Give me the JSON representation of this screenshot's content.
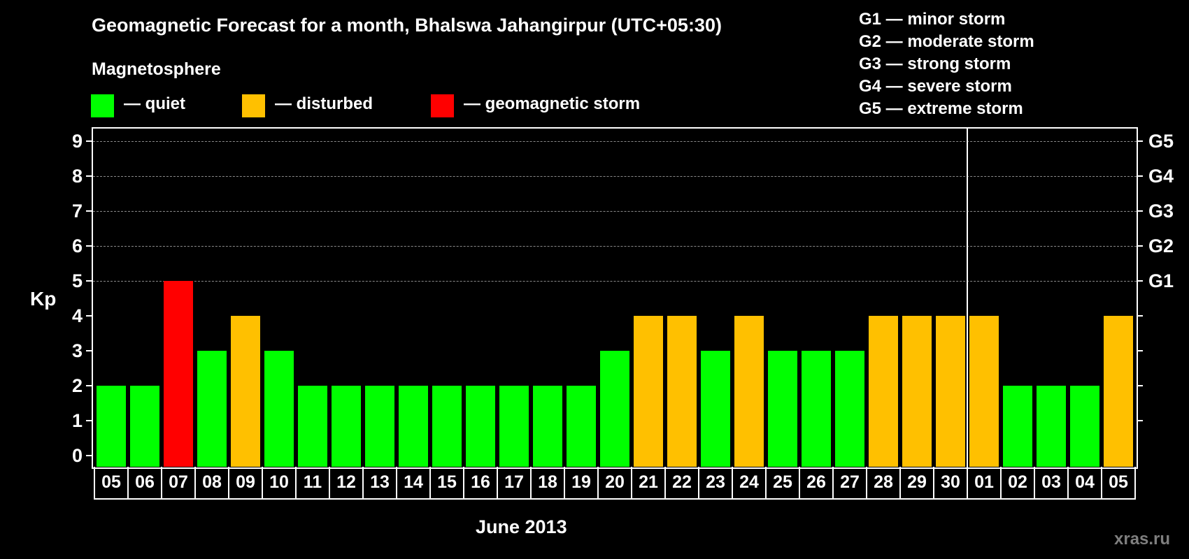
{
  "title": "Geomagnetic Forecast for a month, Bhalswa Jahangirpur (UTC+05:30)",
  "legend": {
    "heading": "Magnetosphere",
    "items": [
      {
        "label": "— quiet",
        "color": "#00ff00"
      },
      {
        "label": "— disturbed",
        "color": "#ffc000"
      },
      {
        "label": "— geomagnetic storm",
        "color": "#ff0000"
      }
    ]
  },
  "g_scale_legend": [
    "G1 — minor storm",
    "G2 — moderate storm",
    "G3 — strong storm",
    "G4 — severe storm",
    "G5 — extreme storm"
  ],
  "axes": {
    "ylabel": "Kp",
    "y_ticks": [
      "0",
      "1",
      "2",
      "3",
      "4",
      "5",
      "6",
      "7",
      "8",
      "9"
    ],
    "right_ticks": [
      {
        "kp": 5,
        "label": "G1"
      },
      {
        "kp": 6,
        "label": "G2"
      },
      {
        "kp": 7,
        "label": "G3"
      },
      {
        "kp": 8,
        "label": "G4"
      },
      {
        "kp": 9,
        "label": "G5"
      }
    ],
    "xlabel": "June 2013"
  },
  "watermark": "xras.ru",
  "colors": {
    "quiet": "#00ff00",
    "disturbed": "#ffc000",
    "storm": "#ff0000",
    "background": "#000000",
    "grid": "#8a8a8a"
  },
  "chart_data": {
    "type": "bar",
    "title": "Geomagnetic Forecast for a month, Bhalswa Jahangirpur (UTC+05:30)",
    "xlabel": "June 2013",
    "ylabel": "Kp",
    "ylim": [
      0,
      9
    ],
    "grid": "dashed horizontal at Kp 5-9",
    "legend_position": "top",
    "month_boundary_after": "30",
    "categories": [
      "05",
      "06",
      "07",
      "08",
      "09",
      "10",
      "11",
      "12",
      "13",
      "14",
      "15",
      "16",
      "17",
      "18",
      "19",
      "20",
      "21",
      "22",
      "23",
      "24",
      "25",
      "26",
      "27",
      "28",
      "29",
      "30",
      "01",
      "02",
      "03",
      "04",
      "05"
    ],
    "values": [
      2,
      2,
      5,
      3,
      4,
      3,
      2,
      2,
      2,
      2,
      2,
      2,
      2,
      2,
      2,
      3,
      4,
      4,
      3,
      4,
      3,
      3,
      3,
      4,
      4,
      4,
      4,
      2,
      2,
      2,
      4
    ],
    "status": [
      "quiet",
      "quiet",
      "storm",
      "quiet",
      "disturbed",
      "quiet",
      "quiet",
      "quiet",
      "quiet",
      "quiet",
      "quiet",
      "quiet",
      "quiet",
      "quiet",
      "quiet",
      "quiet",
      "disturbed",
      "disturbed",
      "quiet",
      "disturbed",
      "quiet",
      "quiet",
      "quiet",
      "disturbed",
      "disturbed",
      "disturbed",
      "disturbed",
      "quiet",
      "quiet",
      "quiet",
      "disturbed"
    ],
    "legend": [
      "quiet",
      "disturbed",
      "geomagnetic storm"
    ],
    "secondary_axis": {
      "G1": 5,
      "G2": 6,
      "G3": 7,
      "G4": 8,
      "G5": 9
    }
  }
}
